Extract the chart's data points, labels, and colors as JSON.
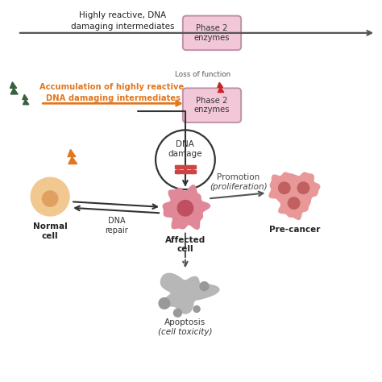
{
  "bg_color": "#ffffff",
  "top_text_line1": "Highly reactive, DNA",
  "top_text_line2": "damaging intermediates",
  "phase2_label": "Phase 2\nenzymes",
  "phase2_fill": "#f2c8d8",
  "phase2_edge": "#c090a8",
  "accum_line1": "Accumulation of highly reactive,",
  "accum_line2": "DNA damaging intermediates",
  "accum_color": "#e07820",
  "loss_text": "Loss of function",
  "loss_color": "#555555",
  "dna_damage_text": "DNA\ndamage",
  "normal_cell_label": "Normal\ncell",
  "normal_outer": "#f0c890",
  "normal_inner": "#e0a060",
  "affected_label": "Affected\ncell",
  "affected_outer": "#e08898",
  "affected_inner": "#c05060",
  "precancer_label": "Pre-cancer",
  "precancer_outer": "#e89898",
  "precancer_inner": "#c06060",
  "dna_repair": "DNA\nrepair",
  "promotion_top": "Promotion",
  "promotion_bot": "(proliferation)",
  "apoptosis_top": "Apoptosis",
  "apoptosis_bot": "(cell toxicity)",
  "apoptosis_color": "#aaaaaa",
  "orange": "#e07820",
  "green_bolt": "#3a6040",
  "red_bolt": "#cc2222",
  "dark": "#333333",
  "gray": "#666666"
}
